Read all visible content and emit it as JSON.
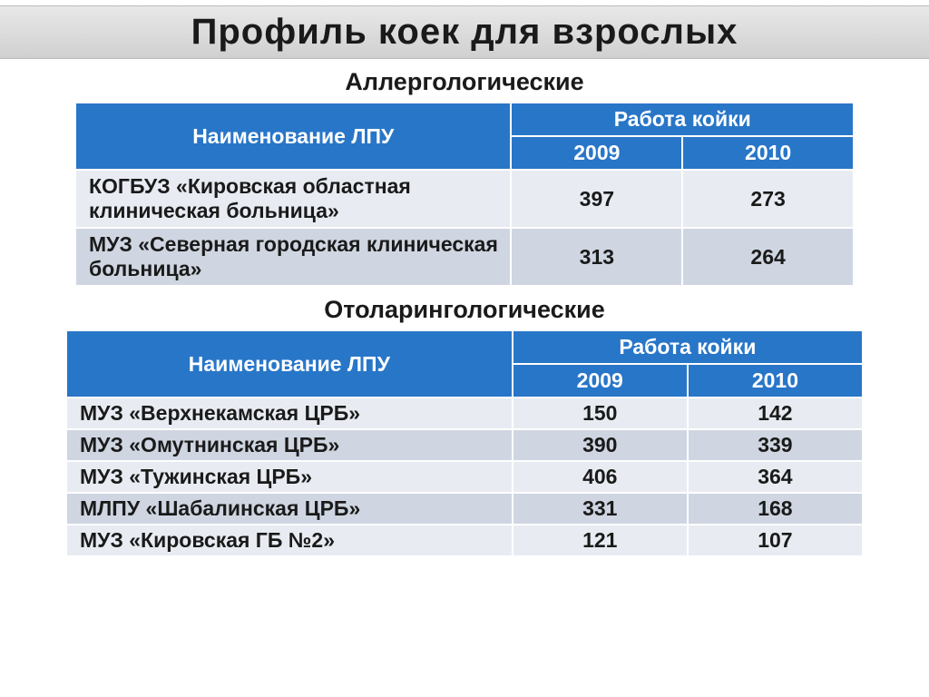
{
  "slide": {
    "title": "Профиль коек для взрослых",
    "title_bg_gradient": [
      "#e8e8e8",
      "#d0d0d0"
    ],
    "title_color": "#1a1a1a",
    "title_fontsize": 40
  },
  "sections": [
    {
      "title": "Аллергологические",
      "title_fontsize": 27,
      "table": {
        "type": "table",
        "header_bg": "#2876c8",
        "header_fg": "#ffffff",
        "row_colors": [
          "#e8ecf2",
          "#cfd6e2"
        ],
        "border_color": "#ffffff",
        "fontsize": 23,
        "name_header": "Наименование ЛПУ",
        "group_header": "Работа койки",
        "year_headers": [
          "2009",
          "2010"
        ],
        "rows": [
          {
            "name": "КОГБУЗ «Кировская областная клиническая больница»",
            "y2009": "397",
            "y2010": "273"
          },
          {
            "name": "МУЗ «Северная городская клиническая больница»",
            "y2009": "313",
            "y2010": "264"
          }
        ]
      }
    },
    {
      "title": "Отоларингологические",
      "title_fontsize": 27,
      "table": {
        "type": "table",
        "header_bg": "#2876c8",
        "header_fg": "#ffffff",
        "row_colors": [
          "#e8ecf2",
          "#cfd6e2"
        ],
        "border_color": "#ffffff",
        "fontsize": 23,
        "name_header": "Наименование ЛПУ",
        "group_header": "Работа койки",
        "year_headers": [
          "2009",
          "2010"
        ],
        "rows": [
          {
            "name": "МУЗ «Верхнекамская ЦРБ»",
            "y2009": "150",
            "y2010": "142"
          },
          {
            "name": "МУЗ «Омутнинская ЦРБ»",
            "y2009": "390",
            "y2010": "339"
          },
          {
            "name": "МУЗ «Тужинская ЦРБ»",
            "y2009": "406",
            "y2010": "364"
          },
          {
            "name": "МЛПУ «Шабалинская ЦРБ»",
            "y2009": "331",
            "y2010": "168"
          },
          {
            "name": "МУЗ «Кировская ГБ №2»",
            "y2009": "121",
            "y2010": "107"
          }
        ]
      }
    }
  ]
}
